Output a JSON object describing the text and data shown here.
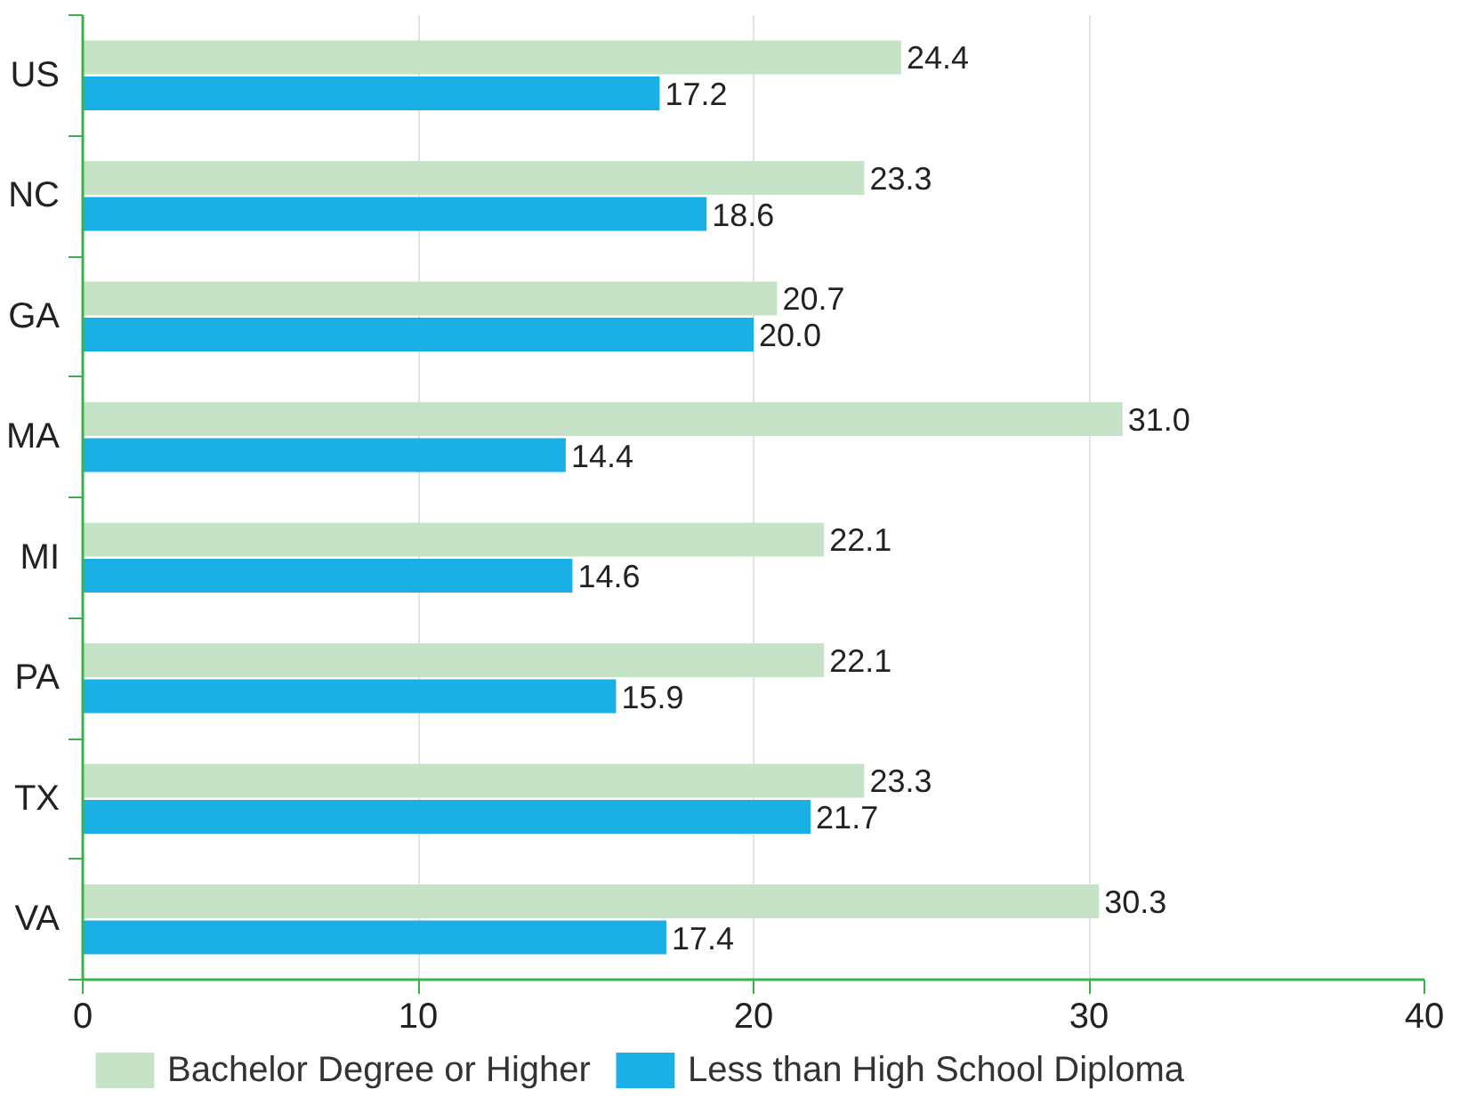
{
  "chart_data": {
    "type": "bar",
    "orientation": "horizontal",
    "categories": [
      "US",
      "NC",
      "GA",
      "MA",
      "MI",
      "PA",
      "TX",
      "VA"
    ],
    "series": [
      {
        "name": "Bachelor Degree or Higher",
        "color": "#c6e3c7",
        "values": [
          24.4,
          23.3,
          20.7,
          31.0,
          22.1,
          22.1,
          23.3,
          30.3
        ],
        "value_labels": [
          "24.4",
          "23.3",
          "20.7",
          "31.0",
          "22.1",
          "22.1",
          "23.3",
          "30.3"
        ]
      },
      {
        "name": "Less than High School Diploma",
        "color": "#1ab0e6",
        "values": [
          17.2,
          18.6,
          20.0,
          14.4,
          14.6,
          15.9,
          21.7,
          17.4
        ],
        "value_labels": [
          "17.2",
          "18.6",
          "20.0",
          "14.4",
          "14.6",
          "15.9",
          "21.7",
          "17.4"
        ]
      }
    ],
    "xlim": [
      0,
      40
    ],
    "xticks": [
      0,
      10,
      20,
      30,
      40
    ],
    "grid": "x",
    "legend": "bottom"
  }
}
